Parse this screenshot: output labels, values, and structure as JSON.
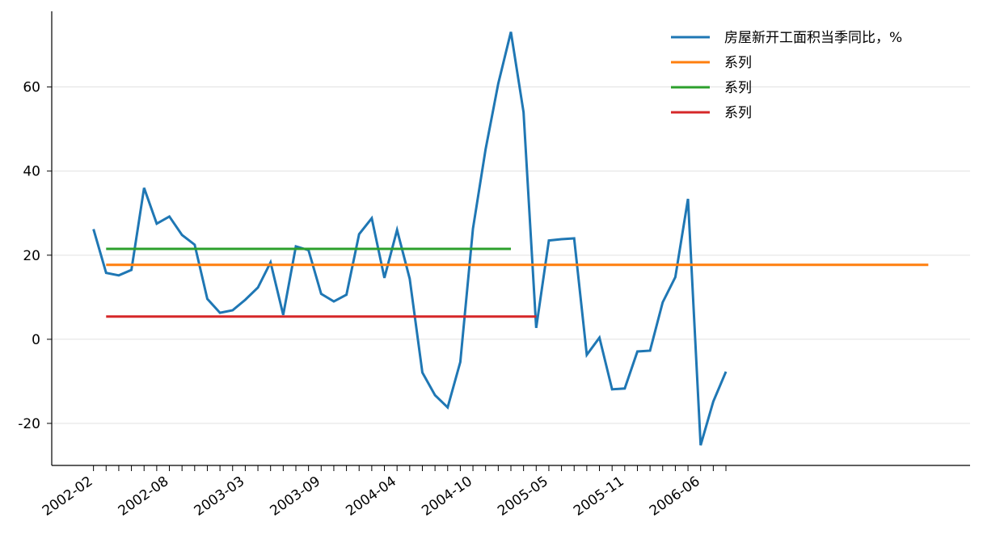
{
  "chart_data": {
    "type": "line",
    "categories": [
      "2002-02",
      null,
      null,
      null,
      null,
      null,
      "2002-08",
      null,
      null,
      null,
      null,
      null,
      "2003-03",
      null,
      null,
      null,
      null,
      null,
      "2003-09",
      null,
      null,
      null,
      null,
      null,
      "2004-04",
      null,
      null,
      null,
      null,
      null,
      "2004-10",
      null,
      null,
      null,
      null,
      null,
      "2005-05",
      null,
      null,
      null,
      null,
      null,
      "2005-11",
      null,
      null,
      null,
      null,
      null,
      "2006-06",
      null,
      null
    ],
    "series": [
      {
        "name": "房屋新开工面积当季同比，%",
        "color": "#1f77b4",
        "values": [
          26.2,
          15.8,
          15.2,
          16.5,
          36.0,
          27.5,
          29.2,
          24.8,
          22.5,
          9.6,
          6.3,
          6.9,
          9.4,
          12.3,
          18.3,
          5.8,
          22.1,
          21.2,
          10.8,
          9.0,
          10.6,
          25.0,
          28.8,
          14.6,
          26.0,
          14.4,
          -7.9,
          -13.3,
          -16.2,
          -5.4,
          26.3,
          45.2,
          60.8,
          73.1,
          54.0,
          2.7,
          23.5,
          23.8,
          24.0,
          -3.7,
          0.4,
          -11.9,
          -11.7,
          -2.9,
          -2.7,
          8.8,
          14.8,
          33.4,
          -25.2,
          -14.8,
          -7.7
        ]
      },
      {
        "name": "系列",
        "color": "#ff7f0e",
        "x": [
          1,
          66
        ],
        "values": [
          17.7,
          17.7
        ]
      },
      {
        "name": "系列",
        "color": "#2ca02c",
        "x": [
          1,
          33
        ],
        "values": [
          21.5,
          21.5
        ]
      },
      {
        "name": "系列",
        "color": "#d62728",
        "x": [
          1,
          35
        ],
        "values": [
          5.4,
          5.4
        ]
      }
    ],
    "xlim": [
      -3.3,
      69.3
    ],
    "ylim": [
      -30,
      78
    ],
    "yticks": [
      -20,
      0,
      20,
      40,
      60
    ],
    "grid": true,
    "legend": "upper right"
  }
}
